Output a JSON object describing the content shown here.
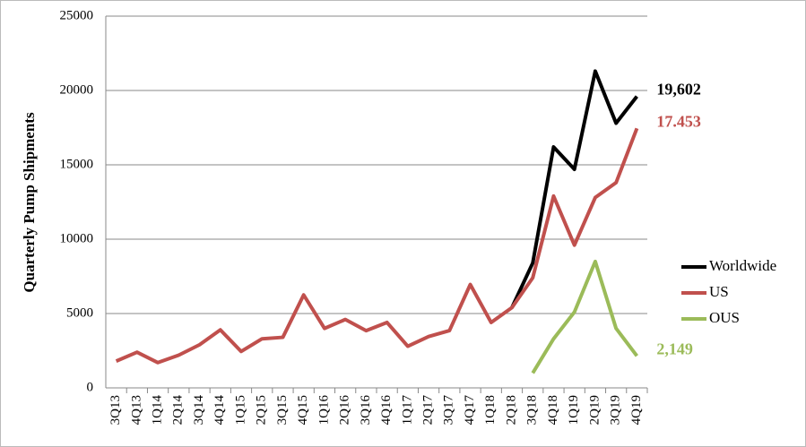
{
  "chart_data": {
    "type": "line",
    "y_label": "Quarterly Pump Shipments",
    "categories": [
      "3Q13",
      "4Q13",
      "1Q14",
      "2Q14",
      "3Q14",
      "4Q14",
      "1Q15",
      "2Q15",
      "3Q15",
      "4Q15",
      "1Q16",
      "2Q16",
      "3Q16",
      "4Q16",
      "1Q17",
      "2Q17",
      "3Q17",
      "4Q17",
      "1Q18",
      "2Q18",
      "3Q18",
      "4Q18",
      "1Q19",
      "2Q19",
      "3Q19",
      "4Q19"
    ],
    "series": [
      {
        "name": "Worldwide",
        "color": "#000000",
        "values": [
          null,
          null,
          null,
          null,
          null,
          null,
          null,
          null,
          null,
          null,
          null,
          null,
          null,
          null,
          null,
          null,
          null,
          null,
          null,
          5400,
          8400,
          16200,
          14700,
          21300,
          17800,
          19602
        ],
        "value_labels": [
          null,
          null,
          null,
          null,
          null,
          null,
          null,
          null,
          null,
          null,
          null,
          null,
          null,
          null,
          null,
          null,
          null,
          null,
          null,
          null,
          null,
          null,
          null,
          null,
          null,
          "19,602"
        ]
      },
      {
        "name": "US",
        "color": "#c0504d",
        "values": [
          1800,
          2400,
          1700,
          2200,
          2900,
          3900,
          2450,
          3300,
          3400,
          6250,
          4000,
          4600,
          3850,
          4400,
          2800,
          3450,
          3850,
          6950,
          4400,
          5400,
          7400,
          12900,
          9600,
          12800,
          13800,
          17453
        ],
        "value_labels": [
          null,
          null,
          null,
          null,
          null,
          null,
          null,
          null,
          null,
          null,
          null,
          null,
          null,
          null,
          null,
          null,
          null,
          null,
          null,
          null,
          null,
          null,
          null,
          null,
          null,
          "17.453"
        ]
      },
      {
        "name": "OUS",
        "color": "#9bbb59",
        "values": [
          null,
          null,
          null,
          null,
          null,
          null,
          null,
          null,
          null,
          null,
          null,
          null,
          null,
          null,
          null,
          null,
          null,
          null,
          null,
          null,
          1000,
          3300,
          5100,
          8500,
          4000,
          2149
        ],
        "value_labels": [
          null,
          null,
          null,
          null,
          null,
          null,
          null,
          null,
          null,
          null,
          null,
          null,
          null,
          null,
          null,
          null,
          null,
          null,
          null,
          null,
          null,
          null,
          null,
          null,
          null,
          "2,149"
        ]
      }
    ],
    "ylim": [
      0,
      25000
    ],
    "yticks": [
      0,
      5000,
      10000,
      15000,
      20000,
      25000
    ],
    "grid": true,
    "legend": "right"
  }
}
